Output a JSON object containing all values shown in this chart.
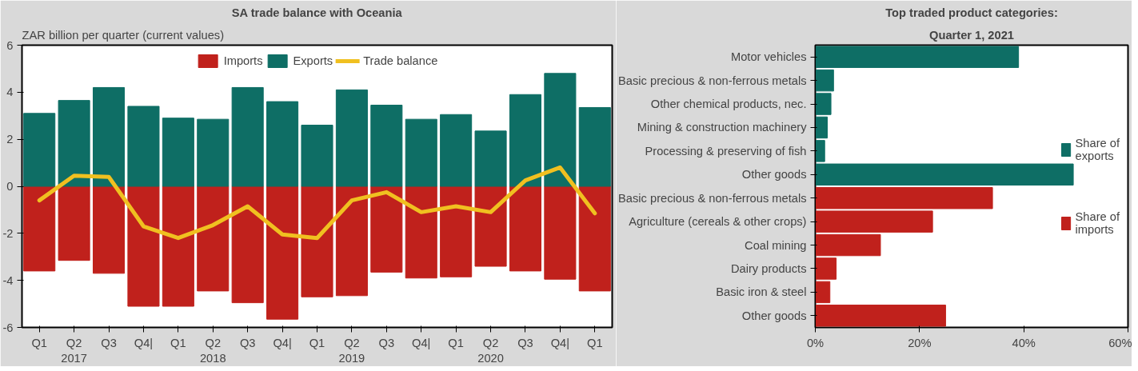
{
  "chart_data": [
    {
      "type": "bar",
      "title": "SA trade balance with Oceania",
      "ylabel": "ZAR billion per quarter (current values)",
      "categories": [
        "Q1",
        "Q2\n2017",
        "Q3",
        "Q4|",
        "Q1",
        "Q2\n2018",
        "Q3",
        "Q4|",
        "Q1",
        "Q2\n2019",
        "Q3",
        "Q4|",
        "Q1",
        "Q2\n2020",
        "Q3",
        "Q4|",
        "Q1"
      ],
      "series": [
        {
          "name": "Imports",
          "color": "#c0211c",
          "values": [
            -3.6,
            -3.15,
            -3.7,
            -5.1,
            -5.1,
            -4.45,
            -4.95,
            -5.65,
            -4.7,
            -4.65,
            -3.65,
            -3.9,
            -3.85,
            -3.4,
            -3.6,
            -3.95,
            -4.45
          ]
        },
        {
          "name": "Exports",
          "color": "#0e6e65",
          "values": [
            3.1,
            3.65,
            4.2,
            3.4,
            2.9,
            2.85,
            4.2,
            3.6,
            2.6,
            4.1,
            3.45,
            2.85,
            3.05,
            2.35,
            3.9,
            4.8,
            3.35
          ]
        },
        {
          "name": "Trade balance",
          "type": "line",
          "color": "#f0c020",
          "values": [
            -0.6,
            0.45,
            0.4,
            -1.7,
            -2.2,
            -1.65,
            -0.85,
            -2.05,
            -2.2,
            -0.6,
            -0.25,
            -1.1,
            -0.85,
            -1.1,
            0.25,
            0.8,
            -1.15
          ]
        }
      ],
      "ylim": [
        -6,
        6
      ],
      "yticks": [
        -6,
        -4,
        -2,
        0,
        2,
        4,
        6
      ],
      "grid": false,
      "legend": "top",
      "stacked": true
    },
    {
      "type": "bar",
      "orientation": "horizontal",
      "title": "Top traded product categories:",
      "subtitle": "Quarter 1, 2021",
      "categories": [
        "Motor vehicles",
        "Basic precious & non-ferrous metals",
        "Other chemical products, nec.",
        "Mining & construction machinery",
        "Processing & preserving of fish",
        "Other goods",
        "Basic precious & non-ferrous metals",
        "Agriculture (cereals & other crops)",
        "Coal mining",
        "Dairy products",
        "Basic iron & steel",
        "Other goods"
      ],
      "series": [
        {
          "name": "Share of\nexports",
          "color": "#0e6e65",
          "values": [
            39,
            3.5,
            3,
            2.3,
            1.8,
            49.5,
            null,
            null,
            null,
            null,
            null,
            null
          ]
        },
        {
          "name": "Share of\nimports",
          "color": "#c0211c",
          "values": [
            null,
            null,
            null,
            null,
            null,
            null,
            34,
            22.5,
            12.5,
            4,
            2.8,
            25
          ]
        }
      ],
      "xlim": [
        0,
        60
      ],
      "xticks": [
        {
          "value": 0,
          "label": "0%"
        },
        {
          "value": 20,
          "label": "20%"
        },
        {
          "value": 40,
          "label": "40%"
        },
        {
          "value": 60,
          "label": "60%"
        }
      ],
      "grid": false,
      "legend": "right"
    }
  ]
}
